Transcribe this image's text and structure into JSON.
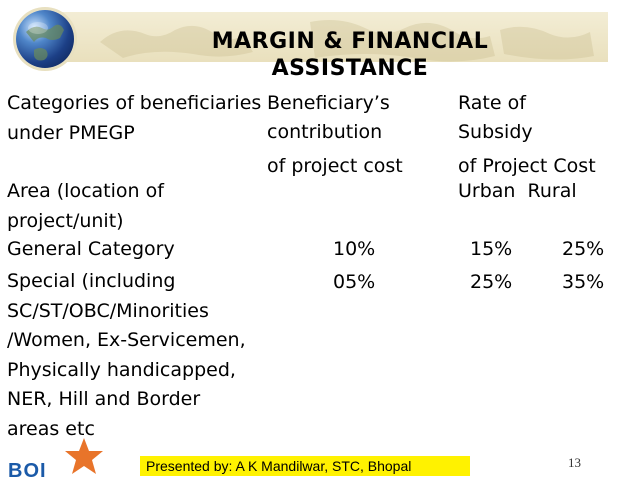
{
  "slide": {
    "title_line1": "MARGIN & FINANCIAL",
    "title_line2": "ASSISTANCE",
    "col1_header": "Categories of beneficiaries under PMEGP",
    "col1_sub": "Area (location of project/unit)",
    "col2_header_l1": "Beneficiary’s",
    "col2_header_l2": "contribution",
    "col2_header_l3": "of project cost",
    "col3_header_l1": "Rate of",
    "col3_header_l2": "Subsidy",
    "col3_header_l3": "of Project Cost",
    "col3_sub": "Urban  Rural",
    "rows": [
      {
        "category": "General Category",
        "contribution": "10%",
        "urban": "15%",
        "rural": "25%"
      },
      {
        "category": "Special (including SC/ST/OBC/Minorities /Women, Ex-Servicemen, Physically handicapped, NER, Hill and Border areas etc",
        "contribution": "05%",
        "urban": "25%",
        "rural": "35%"
      }
    ]
  },
  "footer": {
    "logo_text": "BOI",
    "presenter": "Presented by: A K Mandilwar, STC, Bhopal",
    "page_number": "13"
  },
  "colors": {
    "header_band": "#ede5c5",
    "footer_highlight": "#fff200",
    "logo_blue": "#1b5aa8",
    "star_orange": "#e8742a"
  }
}
